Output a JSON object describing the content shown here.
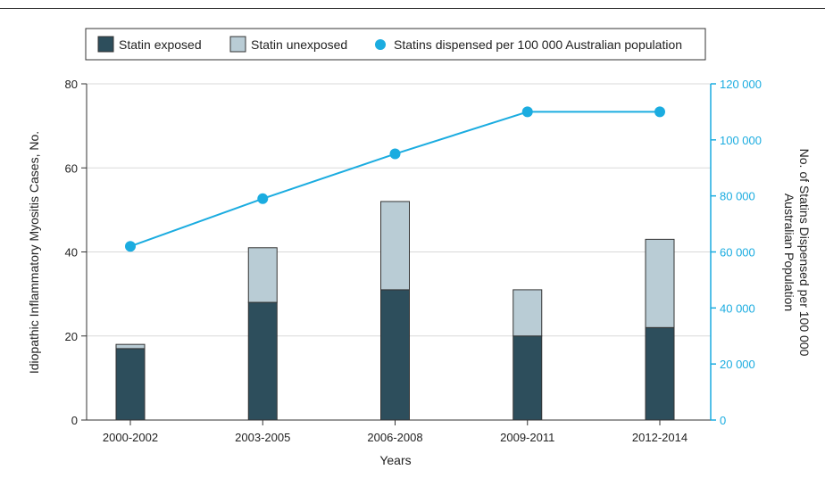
{
  "chart_data": {
    "type": "bar",
    "categories": [
      "2000-2002",
      "2003-2005",
      "2006-2008",
      "2009-2011",
      "2012-2014"
    ],
    "series": [
      {
        "name": "Statin exposed",
        "type": "bar",
        "stack": "cases",
        "values": [
          17,
          28,
          31,
          20,
          22
        ]
      },
      {
        "name": "Statin unexposed",
        "type": "bar",
        "stack": "cases",
        "values": [
          1,
          13,
          21,
          11,
          21
        ]
      },
      {
        "name": "Statins dispensed per 100 000 Australian population",
        "type": "line",
        "axis": "right",
        "values": [
          62000,
          79000,
          95000,
          110000,
          110000
        ]
      }
    ],
    "xlabel": "Years",
    "ylabel": "Idiopathic Inflammatory Myositis Cases, No.",
    "ylabel_right": [
      "No. of Statins Dispensed per 100 000",
      "Australian Population"
    ],
    "ylim": [
      0,
      80
    ],
    "ylim_right": [
      0,
      120000
    ],
    "yticks": [
      "0",
      "20",
      "40",
      "60",
      "80"
    ],
    "yticks_right": [
      "0",
      "20 000",
      "40 000",
      "60 000",
      "80 000",
      "100 000",
      "120 000"
    ],
    "grid": true,
    "legend": "top",
    "colors": {
      "exposed": "#2d4e5c",
      "unexposed": "#b9ccd5",
      "line": "#1bace0",
      "grid": "#d9d9d9",
      "axis": "#333333"
    }
  }
}
